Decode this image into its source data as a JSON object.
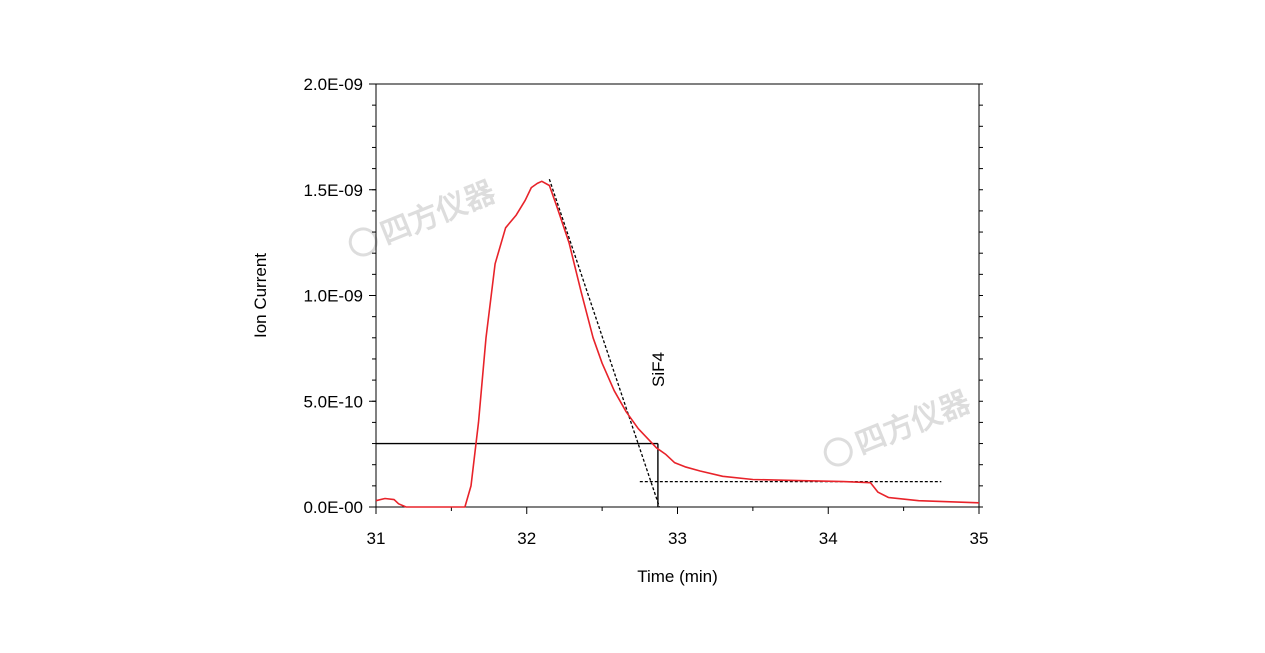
{
  "chart_data": {
    "type": "line",
    "title": "",
    "xlabel": "Time (min)",
    "ylabel": "Ion Current",
    "xlim": [
      31,
      35
    ],
    "ylim": [
      0,
      2e-09
    ],
    "x_ticks": [
      31,
      32,
      33,
      34,
      35
    ],
    "x_tick_labels": [
      "31",
      "32",
      "33",
      "34",
      "35"
    ],
    "y_ticks": [
      0,
      5e-10,
      1e-09,
      1.5e-09,
      2e-09
    ],
    "y_tick_labels": [
      "0.0E-00",
      "5.0E-10",
      "1.0E-09",
      "1.5E-09",
      "2.0E-09"
    ],
    "grid": false,
    "series": [
      {
        "name": "",
        "color": "#e8232a",
        "x": [
          31.0,
          31.06,
          31.12,
          31.15,
          31.2,
          31.35,
          31.5,
          31.59,
          31.63,
          31.68,
          31.73,
          31.79,
          31.86,
          31.93,
          31.99,
          32.03,
          32.07,
          32.1,
          32.15,
          32.2,
          32.28,
          32.36,
          32.44,
          32.5,
          32.58,
          32.66,
          32.74,
          32.82,
          32.86,
          32.92,
          32.98,
          33.05,
          33.15,
          33.3,
          33.5,
          33.8,
          34.1,
          34.28,
          34.33,
          34.4,
          34.6,
          35.0
        ],
        "y": [
          3e-11,
          4e-11,
          3.5e-11,
          1.5e-11,
          0,
          0,
          0,
          0,
          1e-10,
          4e-10,
          8e-10,
          1.15e-09,
          1.32e-09,
          1.38e-09,
          1.45e-09,
          1.51e-09,
          1.53e-09,
          1.54e-09,
          1.52e-09,
          1.42e-09,
          1.25e-09,
          1.02e-09,
          8e-10,
          6.8e-10,
          5.5e-10,
          4.5e-10,
          3.7e-10,
          3.1e-10,
          2.8e-10,
          2.5e-10,
          2.1e-10,
          1.9e-10,
          1.7e-10,
          1.45e-10,
          1.3e-10,
          1.25e-10,
          1.2e-10,
          1.15e-10,
          7e-11,
          4.5e-11,
          3e-11,
          2e-11
        ]
      }
    ],
    "reference_lines": [
      {
        "type": "tangent",
        "style": "dotted",
        "color": "#000000",
        "x": [
          32.15,
          32.88
        ],
        "y": [
          1.55e-09,
          0
        ]
      },
      {
        "type": "baseline",
        "style": "dotted",
        "color": "#000000",
        "x": [
          32.75,
          34.75
        ],
        "y": [
          1.2e-10,
          1.2e-10
        ]
      },
      {
        "type": "horizontal",
        "style": "solid",
        "color": "#000000",
        "x": [
          31.0,
          32.87
        ],
        "y": [
          3e-10,
          3e-10
        ]
      },
      {
        "type": "vertical",
        "style": "solid",
        "color": "#000000",
        "x": [
          32.87,
          32.87
        ],
        "y": [
          3e-10,
          0
        ]
      }
    ],
    "annotations": [
      {
        "text": "SiF4",
        "x": 32.87,
        "y": 6.5e-10,
        "rotation": -90
      }
    ],
    "watermark": "四方仪器"
  }
}
